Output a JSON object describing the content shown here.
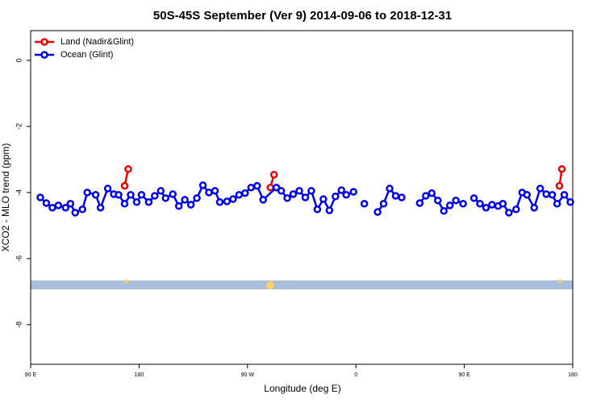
{
  "chart_data": {
    "type": "line",
    "title": "50S-45S September (Ver 9)   2014-09-06 to 2018-12-31",
    "x_label": "Longitude (deg E)",
    "y_label": "XCO2 - MLO trend (ppm)",
    "xlim": [
      90,
      540
    ],
    "xticks": [
      {
        "value": 90,
        "label": "90 E"
      },
      {
        "value": 180,
        "label": "180"
      },
      {
        "value": 270,
        "label": "90 W"
      },
      {
        "value": 360,
        "label": "0"
      },
      {
        "value": 450,
        "label": "90 E"
      },
      {
        "value": 540,
        "label": "180"
      }
    ],
    "ylim": [
      -9.2,
      0.9
    ],
    "yticks": [
      0,
      -2,
      -4,
      -6,
      -8
    ],
    "legend": "top-left",
    "series": [
      {
        "name": "Land (Nadir&Glint)",
        "color": "#ee0000",
        "x": [
          168,
          171,
          200,
          289,
          292,
          410,
          529,
          531
        ],
        "values": [
          -3.8,
          -3.29,
          null,
          -3.85,
          -3.46,
          null,
          -3.8,
          -3.29
        ]
      },
      {
        "name": "Ocean (Glint)",
        "color": "#0000ee",
        "x": [
          98,
          103,
          108,
          113,
          119,
          123,
          127,
          133,
          137,
          144,
          148,
          154,
          159,
          163,
          168,
          173,
          178,
          182,
          188,
          193,
          198,
          202,
          208,
          213,
          218,
          223,
          228,
          233,
          238,
          243,
          247,
          253,
          258,
          263,
          268,
          273,
          278,
          283,
          294,
          298,
          303,
          308,
          313,
          318,
          323,
          328,
          333,
          338,
          343,
          348,
          352,
          358,
          362,
          367,
          372,
          378,
          383,
          388,
          393,
          398,
          405,
          413,
          418,
          423,
          428,
          433,
          438,
          443,
          449,
          453,
          458,
          463,
          468,
          473,
          478,
          482,
          487,
          493,
          498,
          502,
          508,
          513,
          518,
          523,
          527,
          533,
          538
        ],
        "values": [
          -4.15,
          -4.32,
          -4.46,
          -4.39,
          -4.46,
          -4.34,
          -4.61,
          -4.51,
          -4.0,
          -4.07,
          -4.46,
          -3.88,
          -4.05,
          -4.07,
          -4.34,
          -4.07,
          -4.29,
          -4.07,
          -4.29,
          -4.1,
          -3.95,
          -4.17,
          -4.05,
          -4.41,
          -4.22,
          -4.37,
          -4.17,
          -3.78,
          -4.0,
          -3.95,
          -4.29,
          -4.27,
          -4.2,
          -4.07,
          -4.02,
          -3.85,
          -3.8,
          -4.22,
          -3.85,
          -3.95,
          -4.17,
          -4.05,
          -3.95,
          -4.15,
          -3.95,
          -4.51,
          -4.2,
          -4.54,
          -4.12,
          -3.93,
          -4.07,
          -3.98,
          null,
          -4.34,
          null,
          -4.59,
          -4.34,
          -3.88,
          -4.1,
          -4.15,
          null,
          -4.32,
          -4.1,
          -4.02,
          -4.24,
          -4.56,
          -4.39,
          -4.24,
          -4.34,
          null,
          -4.17,
          -4.34,
          -4.46,
          -4.37,
          -4.41,
          -4.34,
          -4.61,
          -4.51,
          -4.0,
          -4.07,
          -4.46,
          -3.88,
          -4.05,
          -4.07,
          -4.34,
          -4.07,
          -4.29
        ]
      }
    ]
  }
}
